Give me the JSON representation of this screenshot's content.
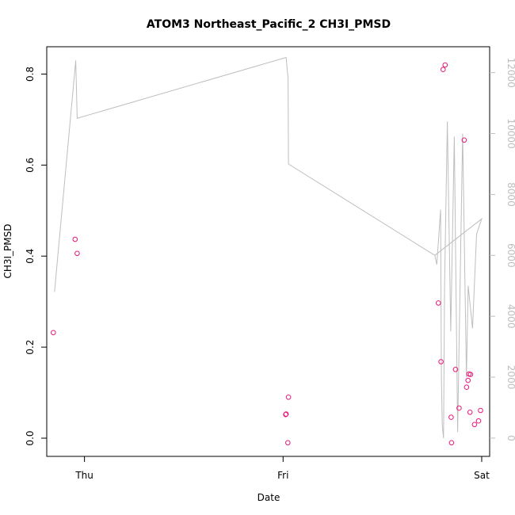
{
  "chart_data": {
    "type": "scatter",
    "title": "ATOM3 Northeast_Pacific_2 CH3I_PMSD",
    "xlabel": "Date",
    "ylabel": "CH3I_PMSD",
    "x_ticks": [
      "Thu",
      "Fri",
      "Sat"
    ],
    "x_range_days": [
      -0.19,
      2.04
    ],
    "y_ticks": [
      "0.0",
      "0.2",
      "0.4",
      "0.6",
      "0.8"
    ],
    "ylim": [
      -0.04,
      0.86
    ],
    "y2_ticks": [
      "0",
      "2000",
      "4000",
      "6000",
      "8000",
      "10000",
      "12000"
    ],
    "y2lim": [
      -600,
      12850
    ],
    "grid": false,
    "point_color": "#e8197a",
    "line_color": "#bebebe",
    "series": [
      {
        "type": "points",
        "axis": "left",
        "x": [
          -0.157,
          -0.047,
          -0.037,
          1.013,
          1.015,
          1.024,
          1.027,
          1.782,
          1.795,
          1.806,
          1.816,
          1.846,
          1.848,
          1.868,
          1.886,
          1.912,
          1.924,
          1.931,
          1.936,
          1.941,
          1.944,
          1.964,
          1.984,
          1.994
        ],
        "y": [
          0.232,
          0.437,
          0.406,
          0.052,
          0.053,
          -0.01,
          0.09,
          0.297,
          0.168,
          0.81,
          0.82,
          0.046,
          -0.01,
          0.151,
          0.066,
          0.655,
          0.112,
          0.127,
          0.141,
          0.057,
          0.14,
          0.03,
          0.038,
          0.061
        ]
      },
      {
        "type": "line",
        "axis": "right",
        "x": [
          -0.151,
          -0.044,
          -0.037,
          1.015,
          1.025,
          1.027,
          1.764,
          1.774,
          1.793,
          1.797,
          1.801,
          1.803,
          1.808,
          1.813,
          1.827,
          1.844,
          1.862,
          1.879,
          1.904,
          1.923,
          1.932,
          1.954,
          1.974,
          2.0,
          1.764
        ],
        "y": [
          4800,
          12400,
          10500,
          12500,
          11800,
          9000,
          6000,
          5700,
          7500,
          2000,
          500,
          300,
          0,
          5000,
          10400,
          3500,
          9900,
          200,
          10000,
          2000,
          5000,
          3600,
          6700,
          7200,
          6000
        ]
      }
    ]
  }
}
